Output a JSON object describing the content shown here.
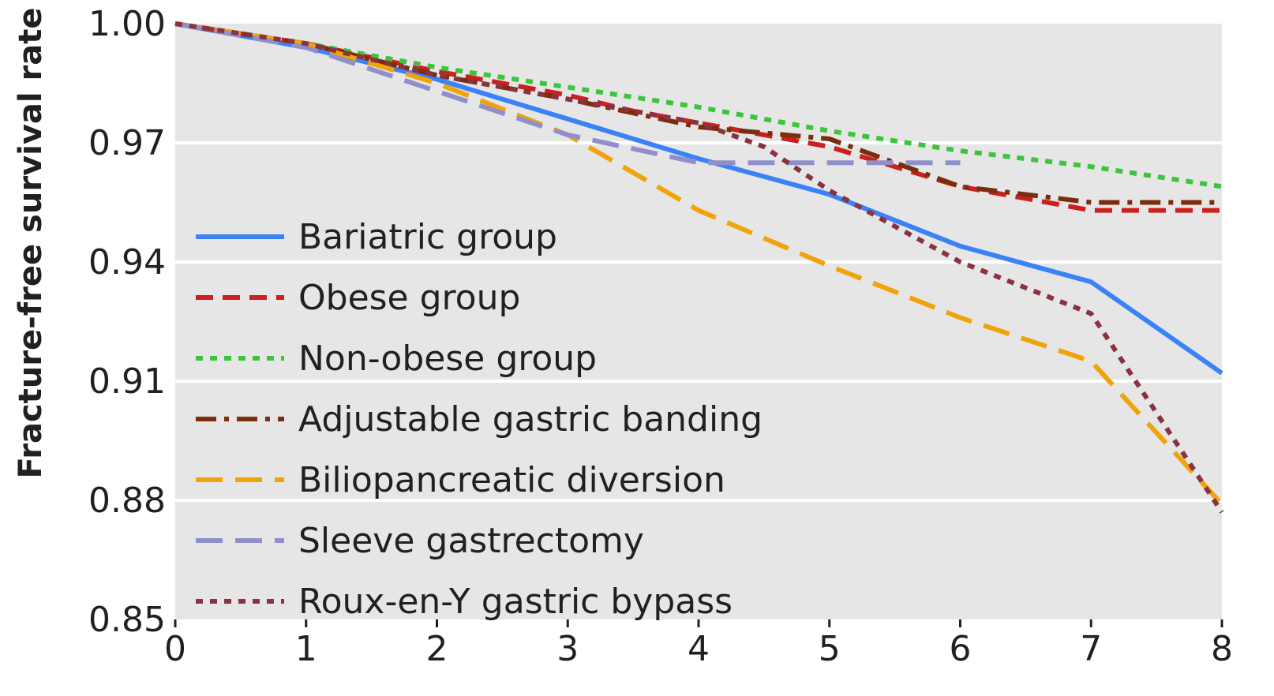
{
  "chart_data": {
    "type": "line",
    "title": "",
    "xlabel": "",
    "ylabel": "Fracture-free survival rate",
    "xlim": [
      0,
      8
    ],
    "ylim": [
      0.85,
      1.0
    ],
    "x_ticks": [
      "0",
      "1",
      "2",
      "3",
      "4",
      "5",
      "6",
      "7",
      "8"
    ],
    "y_ticks": [
      "1.00",
      "0.97",
      "0.94",
      "0.91",
      "0.88",
      "0.85"
    ],
    "grid": "horizontal",
    "background": "#e6e6e6",
    "legend_position": "bottom-left",
    "series": [
      {
        "name": "Bariatric group",
        "color": "#3b82f6",
        "style": "solid",
        "points": [
          [
            0,
            1.0
          ],
          [
            1,
            0.994
          ],
          [
            2,
            0.986
          ],
          [
            3,
            0.976
          ],
          [
            4,
            0.966
          ],
          [
            5,
            0.957
          ],
          [
            6,
            0.944
          ],
          [
            7,
            0.935
          ],
          [
            8,
            0.912
          ]
        ]
      },
      {
        "name": "Obese group",
        "color": "#cc1f1f",
        "style": "dashed",
        "points": [
          [
            0,
            1.0
          ],
          [
            1,
            0.995
          ],
          [
            2,
            0.988
          ],
          [
            3,
            0.982
          ],
          [
            3.5,
            0.978
          ],
          [
            4,
            0.975
          ],
          [
            5,
            0.969
          ],
          [
            6,
            0.959
          ],
          [
            7,
            0.953
          ],
          [
            8,
            0.953
          ]
        ]
      },
      {
        "name": "Non-obese group",
        "color": "#3cc43c",
        "style": "dotted",
        "points": [
          [
            0,
            1.0
          ],
          [
            1,
            0.995
          ],
          [
            2,
            0.989
          ],
          [
            3,
            0.984
          ],
          [
            4,
            0.979
          ],
          [
            5,
            0.973
          ],
          [
            6,
            0.968
          ],
          [
            7,
            0.964
          ],
          [
            8,
            0.959
          ]
        ]
      },
      {
        "name": "Adjustable gastric banding",
        "color": "#7a2e0e",
        "style": "dashdot",
        "points": [
          [
            0,
            1.0
          ],
          [
            1,
            0.995
          ],
          [
            2,
            0.987
          ],
          [
            3,
            0.981
          ],
          [
            4,
            0.974
          ],
          [
            5,
            0.971
          ],
          [
            6,
            0.959
          ],
          [
            7,
            0.955
          ],
          [
            8,
            0.955
          ]
        ]
      },
      {
        "name": "Biliopancreatic diversion",
        "color": "#f0a30a",
        "style": "longdash",
        "points": [
          [
            0,
            1.0
          ],
          [
            1,
            0.995
          ],
          [
            2,
            0.985
          ],
          [
            3,
            0.972
          ],
          [
            4,
            0.953
          ],
          [
            5,
            0.939
          ],
          [
            6,
            0.926
          ],
          [
            7,
            0.915
          ],
          [
            8,
            0.879
          ]
        ]
      },
      {
        "name": "Sleeve gastrectomy",
        "color": "#8f8fcc",
        "style": "longdash",
        "points": [
          [
            0,
            1.0
          ],
          [
            1,
            0.994
          ],
          [
            2,
            0.983
          ],
          [
            3,
            0.972
          ],
          [
            4,
            0.965
          ],
          [
            5,
            0.965
          ],
          [
            6,
            0.965
          ]
        ]
      },
      {
        "name": "Roux-en-Y gastric bypass",
        "color": "#8a3340",
        "style": "dotted",
        "points": [
          [
            0,
            1.0
          ],
          [
            1,
            0.995
          ],
          [
            2,
            0.987
          ],
          [
            3,
            0.981
          ],
          [
            4,
            0.975
          ],
          [
            4.5,
            0.969
          ],
          [
            5,
            0.958
          ],
          [
            6,
            0.94
          ],
          [
            7,
            0.927
          ],
          [
            8,
            0.877
          ]
        ]
      }
    ]
  }
}
